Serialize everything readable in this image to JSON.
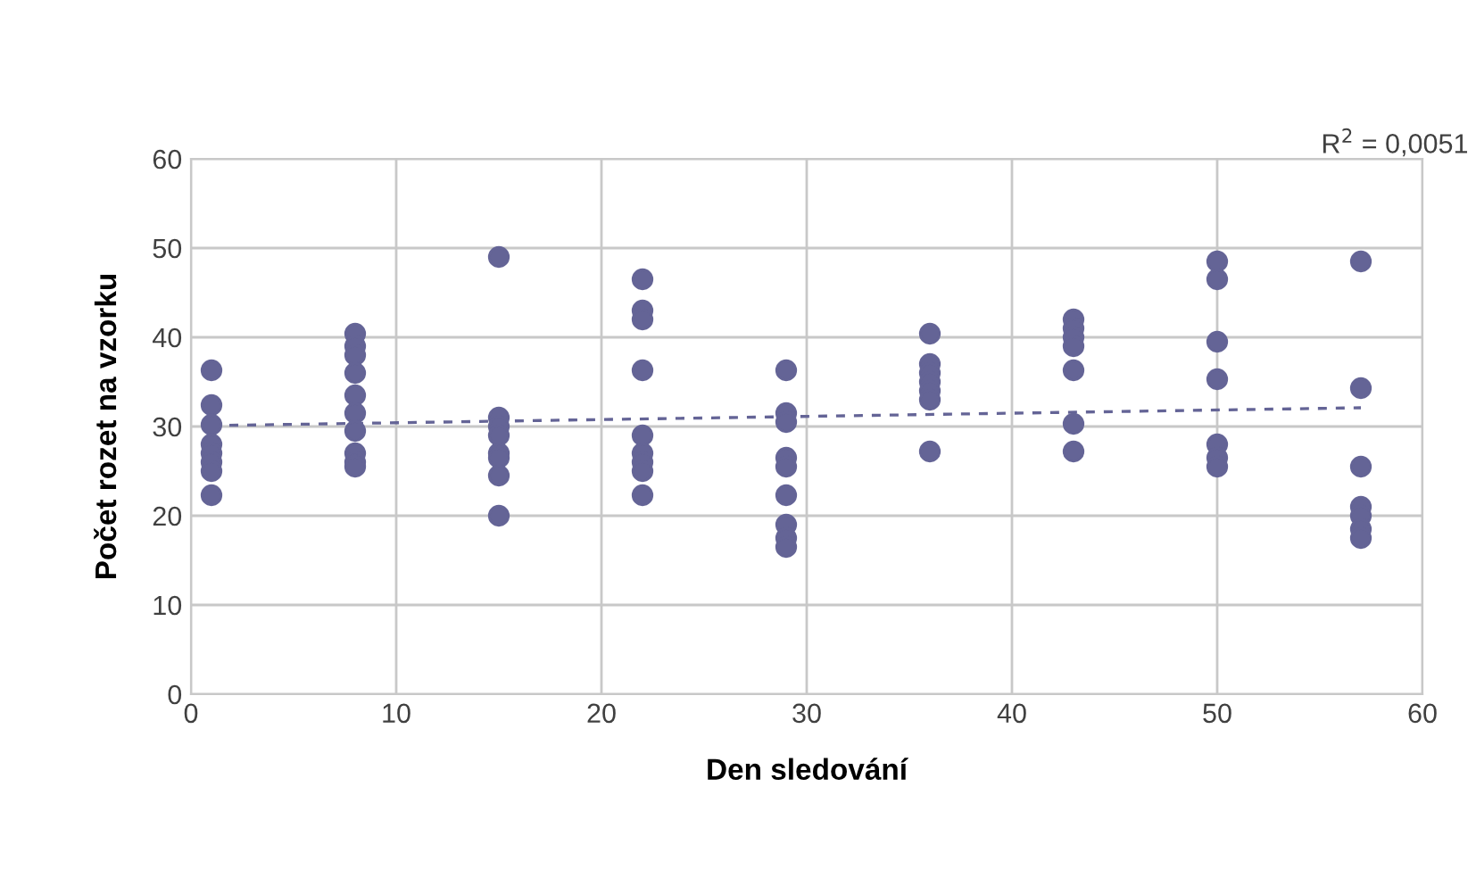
{
  "chart_data": {
    "type": "scatter",
    "xlabel": "Den sledování",
    "ylabel": "Počet rozet na vzorku",
    "xlim": [
      0,
      60
    ],
    "ylim": [
      0,
      60
    ],
    "xticks": [
      0,
      10,
      20,
      30,
      40,
      50,
      60
    ],
    "yticks": [
      0,
      10,
      20,
      30,
      40,
      50,
      60
    ],
    "grid": true,
    "legend": false,
    "marker": "circle",
    "annotations": [
      "R$^{2}$ = 0,0051"
    ],
    "series": [
      {
        "color": "#646496",
        "x": [
          1,
          1,
          1,
          1,
          1,
          1,
          1,
          1,
          8,
          8,
          8,
          8,
          8,
          8,
          8,
          8,
          8,
          8,
          15,
          15,
          15,
          15,
          15,
          15,
          15,
          15,
          22,
          22,
          22,
          22,
          22,
          22,
          22,
          22,
          22,
          29,
          29,
          29,
          29,
          29,
          29,
          29,
          29,
          29,
          36,
          36,
          36,
          36,
          36,
          36,
          36,
          43,
          43,
          43,
          43,
          43,
          43,
          43,
          50,
          50,
          50,
          50,
          50,
          50,
          50,
          57,
          57,
          57,
          57,
          57,
          57,
          57
        ],
        "values": [
          36.3,
          32.4,
          30.2,
          28,
          27,
          26,
          25,
          22.3,
          40.4,
          39,
          38,
          36,
          33.5,
          31.5,
          29.5,
          27,
          26,
          25.5,
          49,
          31,
          30,
          29,
          27,
          26.5,
          24.5,
          20,
          46.5,
          43,
          42,
          36.3,
          29,
          27,
          26,
          25,
          22.3,
          36.3,
          31.5,
          30.5,
          26.5,
          25.5,
          22.3,
          19,
          17.5,
          16.5,
          40.4,
          37,
          36,
          35,
          34,
          33,
          27.2,
          42,
          41,
          40,
          39,
          36.3,
          30.3,
          27.2,
          48.5,
          46.5,
          39.5,
          35.3,
          28,
          26.5,
          25.5,
          48.5,
          34.3,
          25.5,
          21,
          20,
          18.5,
          17.5
        ]
      },
      {
        "type": "line",
        "color": "#646496",
        "line_style": "dashed",
        "marker": "none",
        "x": [
          1,
          57
        ],
        "values": [
          30.1,
          32.1
        ]
      }
    ]
  }
}
